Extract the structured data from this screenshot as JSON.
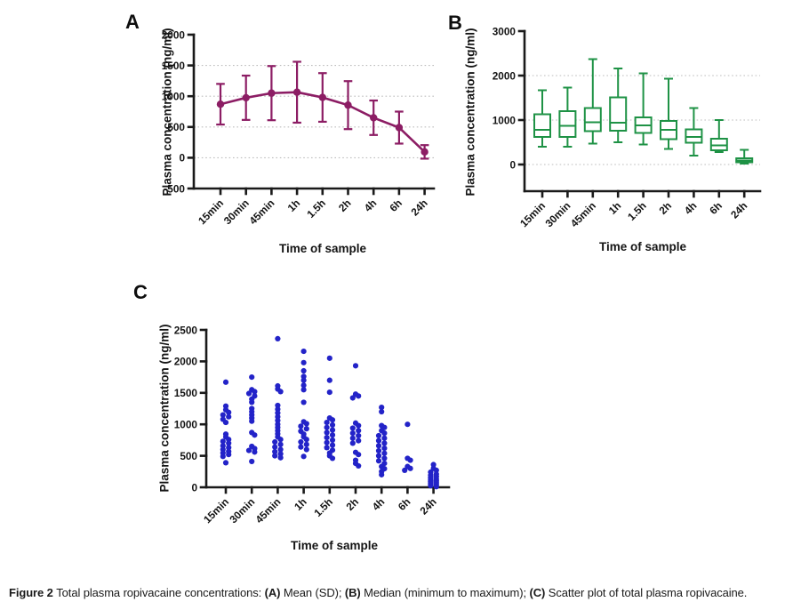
{
  "figure_caption": {
    "segments": [
      {
        "text": "Figure 2 ",
        "bold": true
      },
      {
        "text": "Total plasma ropivacaine concentrations: ",
        "bold": false
      },
      {
        "text": "(A)",
        "bold": true
      },
      {
        "text": " Mean (SD); ",
        "bold": false
      },
      {
        "text": "(B)",
        "bold": true
      },
      {
        "text": " Median (minimum to maximum); ",
        "bold": false
      },
      {
        "text": "(C)",
        "bold": true
      },
      {
        "text": " Scatter plot of total plasma ropivacaine.",
        "bold": false
      }
    ]
  },
  "chart_data": [
    {
      "panel_label": "A",
      "type": "line",
      "series_name": "Mean (SD)",
      "ylabel": "Plasma concentration (ng/ml)",
      "xlabel": "Time of sample",
      "categories": [
        "15min",
        "30min",
        "45min",
        "1h",
        "1.5h",
        "2h",
        "4h",
        "6h",
        "24h"
      ],
      "series": [
        {
          "name": "Mean (SD)",
          "mean": [
            870,
            975,
            1050,
            1065,
            980,
            855,
            650,
            490,
            95
          ],
          "sd": [
            330,
            360,
            440,
            495,
            395,
            390,
            280,
            260,
            110
          ]
        }
      ],
      "ylim": [
        -500,
        2000
      ],
      "yticks": [
        -500,
        0,
        500,
        1000,
        1500,
        2000
      ],
      "gridlines": [
        0,
        500,
        1000,
        1500
      ],
      "grid_on": true,
      "legend": "none",
      "color": "#8c1d64"
    },
    {
      "panel_label": "B",
      "type": "box",
      "series_name": "Median (minimum to maximum)",
      "ylabel": "Plasma concentration (ng/ml)",
      "xlabel": "Time of sample",
      "categories": [
        "15min",
        "30min",
        "45min",
        "1h",
        "1.5h",
        "2h",
        "4h",
        "6h",
        "24h"
      ],
      "stats": {
        "min": [
          400,
          400,
          470,
          500,
          450,
          350,
          200,
          280,
          20
        ],
        "q1": [
          620,
          620,
          750,
          760,
          710,
          570,
          490,
          320,
          50
        ],
        "median": [
          780,
          870,
          950,
          940,
          880,
          780,
          620,
          430,
          90
        ],
        "q3": [
          1130,
          1200,
          1270,
          1510,
          1060,
          980,
          790,
          580,
          140
        ],
        "max": [
          1670,
          1730,
          2370,
          2160,
          2050,
          1930,
          1270,
          1000,
          330
        ]
      },
      "ylim": [
        0,
        3000
      ],
      "yticks": [
        0,
        1000,
        2000,
        3000
      ],
      "gridlines": [
        0,
        1000,
        2000
      ],
      "grid_on": true,
      "legend": "none",
      "color": "#1e9245"
    },
    {
      "panel_label": "C",
      "type": "scatter",
      "series_name": "Scatter plot of total plasma ropivacaine",
      "ylabel": "Plasma concentration (ng/ml)",
      "xlabel": "Time of sample",
      "categories": [
        "15min",
        "30min",
        "45min",
        "1h",
        "1.5h",
        "2h",
        "4h",
        "6h",
        "24h"
      ],
      "values": [
        [
          390,
          490,
          520,
          545,
          570,
          600,
          630,
          660,
          700,
          730,
          760,
          800,
          845,
          1030,
          1080,
          1120,
          1150,
          1190,
          1230,
          1290,
          1670
        ],
        [
          410,
          560,
          585,
          615,
          650,
          830,
          870,
          1050,
          1100,
          1150,
          1200,
          1250,
          1350,
          1400,
          1450,
          1490,
          1520,
          1550,
          1750
        ],
        [
          470,
          500,
          530,
          565,
          600,
          640,
          680,
          720,
          760,
          800,
          850,
          900,
          950,
          1000,
          1060,
          1120,
          1180,
          1240,
          1300,
          1520,
          1560,
          1610,
          2360
        ],
        [
          490,
          600,
          640,
          680,
          720,
          760,
          800,
          845,
          890,
          930,
          970,
          1010,
          1040,
          1350,
          1550,
          1620,
          1700,
          1760,
          1850,
          1980,
          2160
        ],
        [
          460,
          500,
          545,
          590,
          630,
          670,
          710,
          750,
          790,
          830,
          870,
          910,
          950,
          990,
          1030,
          1070,
          1100,
          1510,
          1700,
          2050
        ],
        [
          340,
          380,
          430,
          520,
          555,
          700,
          740,
          780,
          820,
          860,
          900,
          940,
          980,
          1020,
          1420,
          1450,
          1480,
          1930
        ],
        [
          200,
          250,
          295,
          330,
          380,
          420,
          460,
          500,
          540,
          580,
          620,
          660,
          700,
          740,
          780,
          820,
          860,
          900,
          950,
          980,
          1200,
          1270
        ],
        [
          270,
          300,
          330,
          430,
          460,
          1000
        ],
        [
          10,
          25,
          40,
          55,
          70,
          85,
          100,
          115,
          130,
          150,
          170,
          190,
          210,
          240,
          270,
          300,
          360
        ]
      ],
      "ylim": [
        0,
        2500
      ],
      "yticks": [
        0,
        500,
        1000,
        1500,
        2000,
        2500
      ],
      "gridlines": [],
      "grid_on": false,
      "legend": "none",
      "color": "#2323c8"
    }
  ],
  "style": {
    "axis_color": "#1a1a1a",
    "grid_color": "#bdbdbd",
    "background": "#ffffff"
  }
}
